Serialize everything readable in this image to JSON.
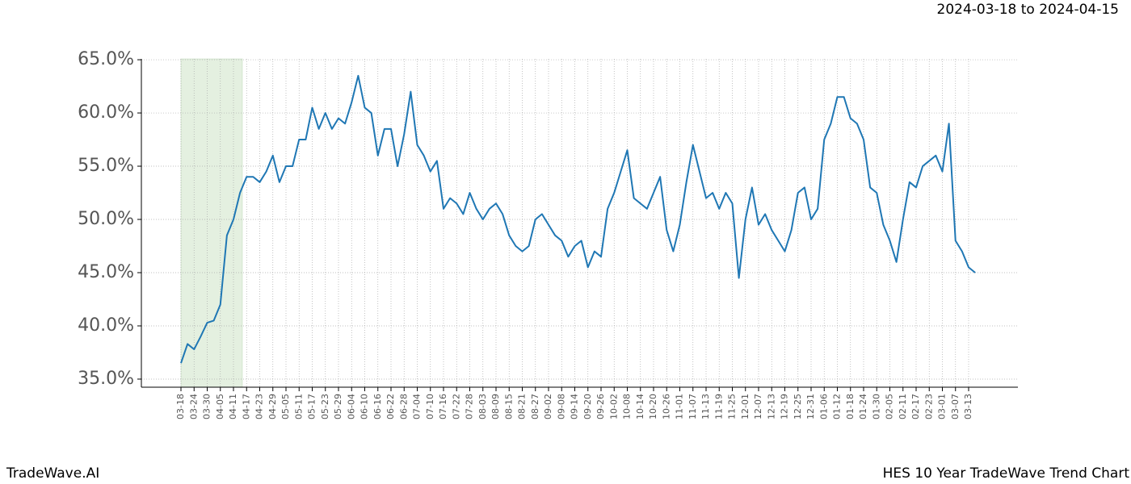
{
  "chart_data": {
    "type": "line",
    "title": "HES 10 Year TradeWave Trend Chart",
    "subtitle": "2024-03-18 to 2024-04-15",
    "brand": "TradeWave.AI",
    "categories": [
      "03-18",
      null,
      "03-24",
      null,
      "03-30",
      null,
      "04-05",
      null,
      "04-11",
      null,
      "04-17",
      null,
      "04-23",
      null,
      "04-29",
      null,
      "05-05",
      null,
      "05-11",
      null,
      "05-17",
      null,
      "05-23",
      null,
      "05-29",
      null,
      "06-04",
      null,
      "06-10",
      null,
      "06-16",
      null,
      "06-22",
      null,
      "06-28",
      null,
      "07-04",
      null,
      "07-10",
      null,
      "07-16",
      null,
      "07-22",
      null,
      "07-28",
      null,
      "08-03",
      null,
      "08-09",
      null,
      "08-15",
      null,
      "08-21",
      null,
      "08-27",
      null,
      "09-02",
      null,
      "09-08",
      null,
      "09-14",
      null,
      "09-20",
      null,
      "09-26",
      null,
      "10-02",
      null,
      "10-08",
      null,
      "10-14",
      null,
      "10-20",
      null,
      "10-26",
      null,
      "11-01",
      null,
      "11-07",
      null,
      "11-13",
      null,
      "11-19",
      null,
      "11-25",
      null,
      "12-01",
      null,
      "12-07",
      null,
      "12-13",
      null,
      "12-19",
      null,
      "12-25",
      null,
      "12-31",
      null,
      "01-06",
      null,
      "01-12",
      null,
      "01-18",
      null,
      "01-24",
      null,
      "01-30",
      null,
      "02-05",
      null,
      "02-11",
      null,
      "02-17",
      null,
      "02-23",
      null,
      "03-01",
      null,
      "03-07",
      null,
      "03-13",
      null
    ],
    "series": [
      {
        "name": "HES",
        "color": "#1f77b4",
        "values": [
          36.5,
          38.3,
          37.8,
          39.0,
          40.3,
          40.5,
          42.0,
          48.5,
          50.0,
          52.5,
          54.0,
          54.0,
          53.5,
          54.5,
          56.0,
          53.5,
          55.0,
          55.0,
          57.5,
          57.5,
          60.5,
          58.5,
          60.0,
          58.5,
          59.5,
          59.0,
          61.0,
          63.5,
          60.5,
          60.0,
          56.0,
          58.5,
          58.5,
          55.0,
          58.0,
          62.0,
          57.0,
          56.0,
          54.5,
          55.5,
          51.0,
          52.0,
          51.5,
          50.5,
          52.5,
          51.0,
          50.0,
          51.0,
          51.5,
          50.5,
          48.5,
          47.5,
          47.0,
          47.5,
          50.0,
          50.5,
          49.5,
          48.5,
          48.0,
          46.5,
          47.5,
          48.0,
          45.5,
          47.0,
          46.5,
          51.0,
          52.5,
          54.5,
          56.5,
          52.0,
          51.5,
          51.0,
          52.5,
          54.0,
          49.0,
          47.0,
          49.5,
          53.5,
          57.0,
          54.5,
          52.0,
          52.5,
          51.0,
          52.5,
          51.5,
          44.5,
          50.0,
          53.0,
          49.5,
          50.5,
          49.0,
          48.0,
          47.0,
          49.0,
          52.5,
          53.0,
          50.0,
          51.0,
          57.5,
          59.0,
          61.5,
          61.5,
          59.5,
          59.0,
          57.5,
          53.0,
          52.5,
          49.5,
          48.0,
          46.0,
          50.0,
          53.5,
          53.0,
          55.0,
          55.5,
          56.0,
          54.5,
          59.0,
          48.0,
          47.0,
          45.5,
          45.0
        ]
      }
    ],
    "ylim": [
      34.24,
      65.08
    ],
    "yticks": [
      {
        "value": 35,
        "label": "35.0%"
      },
      {
        "value": 40,
        "label": "40.0%"
      },
      {
        "value": 45,
        "label": "45.0%"
      },
      {
        "value": 50,
        "label": "50.0%"
      },
      {
        "value": 55,
        "label": "55.0%"
      },
      {
        "value": 60,
        "label": "60.0%"
      },
      {
        "value": 65,
        "label": "65.0%"
      }
    ],
    "grid": true
  }
}
